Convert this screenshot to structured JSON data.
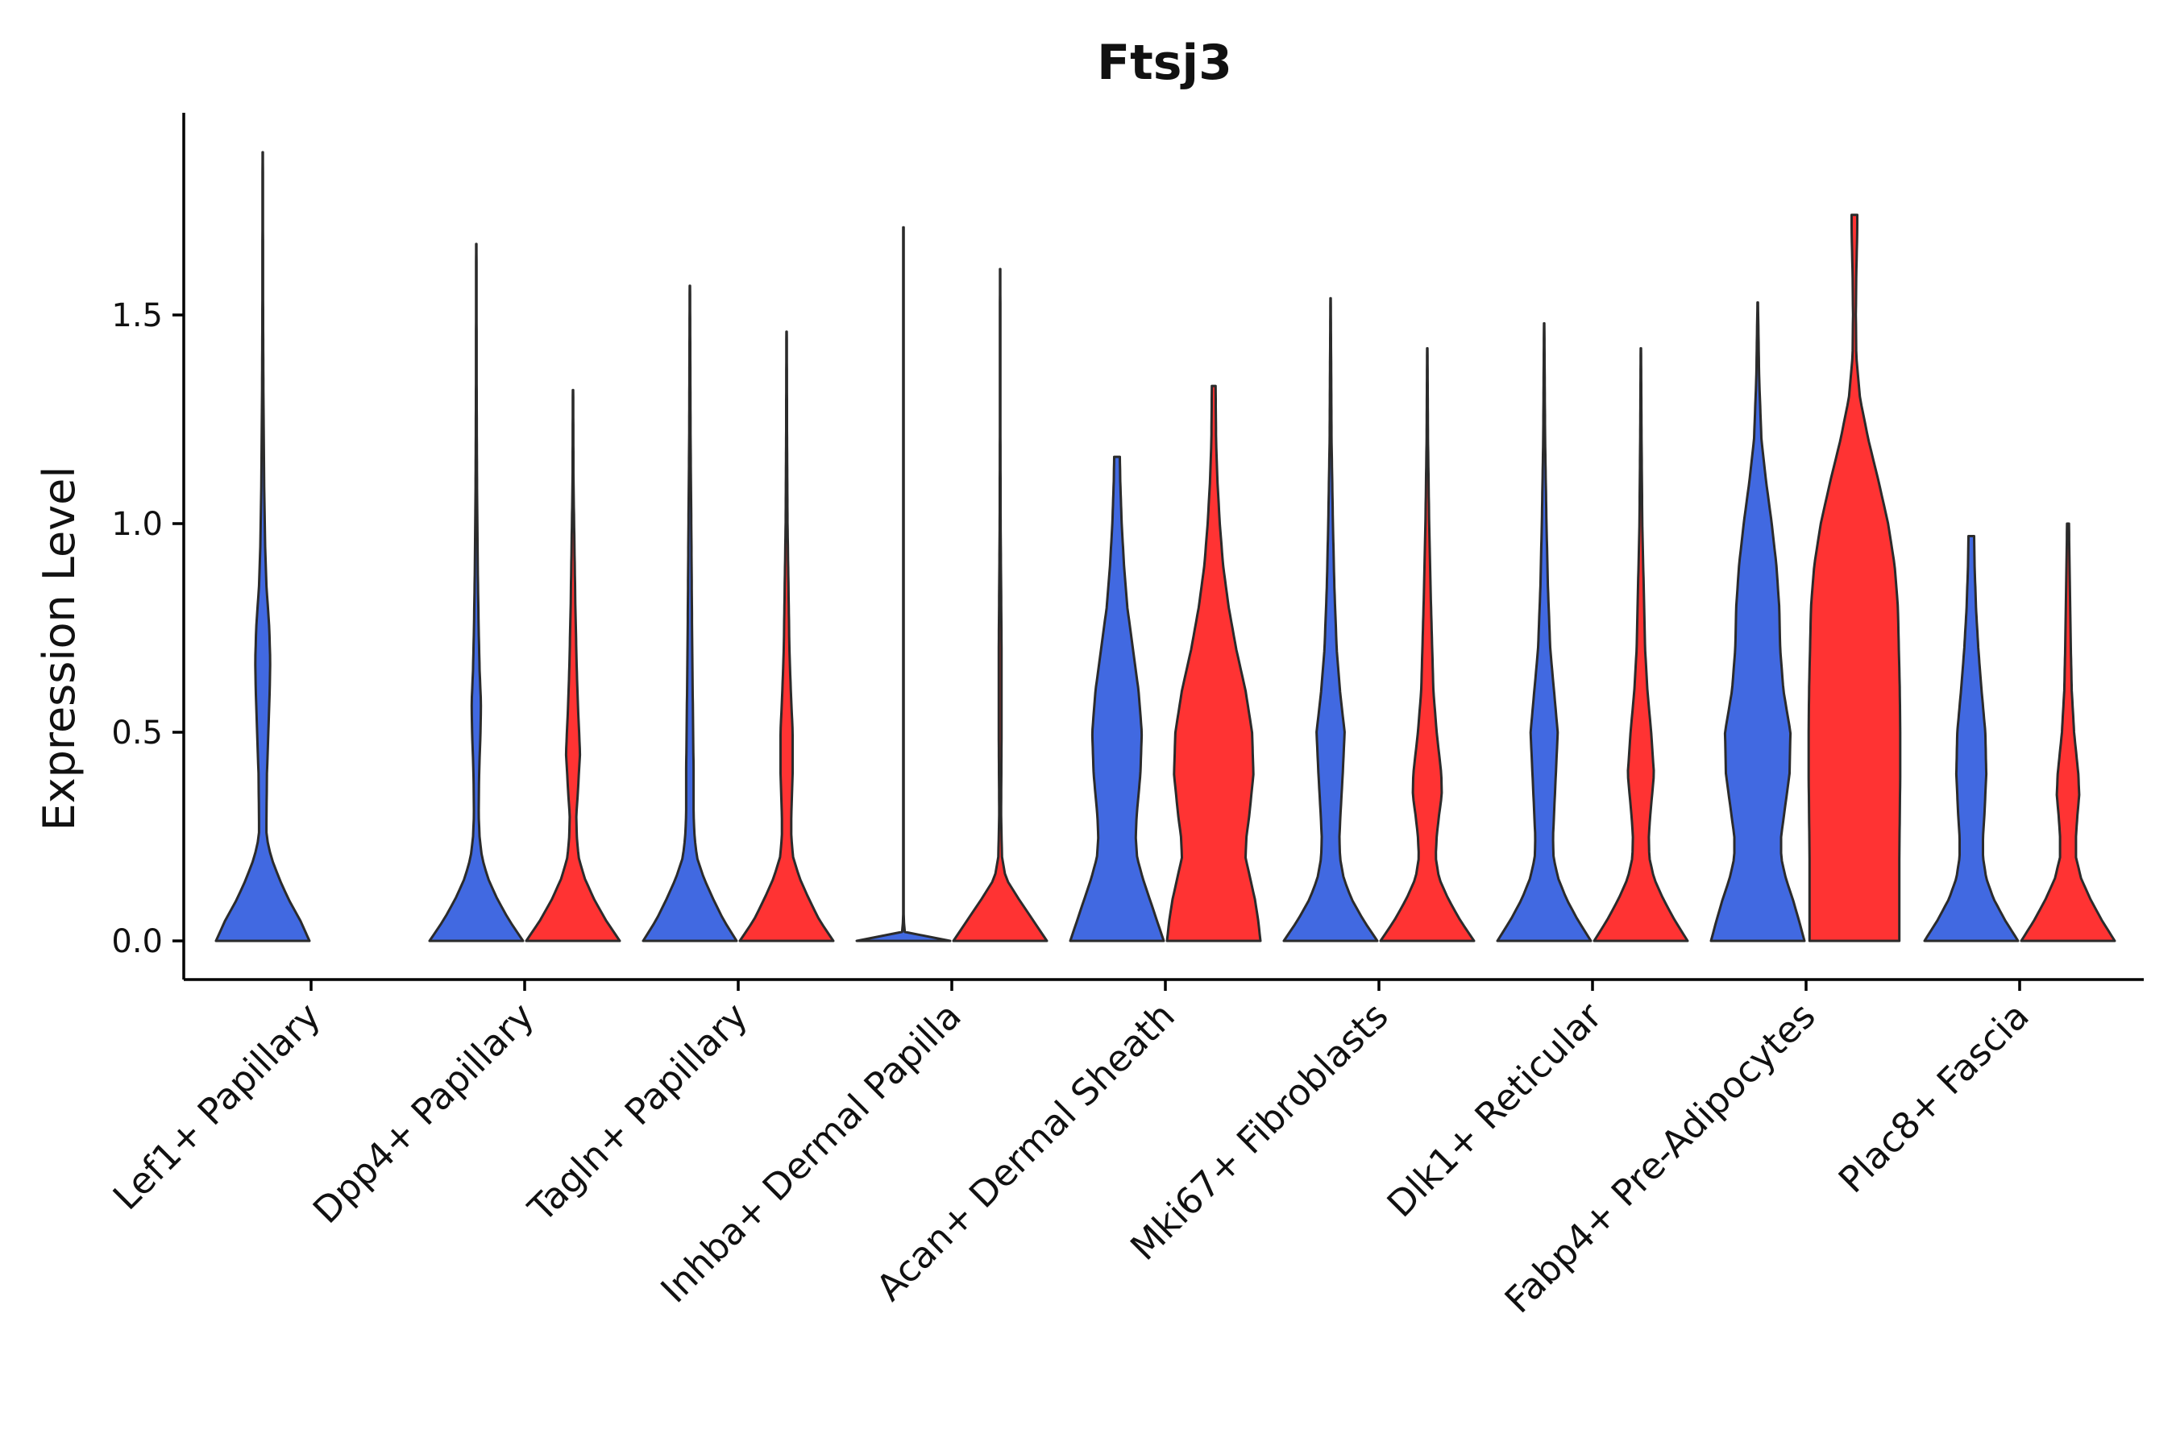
{
  "chart_data": {
    "type": "violin",
    "title": "Ftsj3",
    "xlabel": "",
    "ylabel": "Expression Level",
    "ylim": [
      -0.1,
      2.0
    ],
    "yticks": [
      0.0,
      0.5,
      1.0,
      1.5
    ],
    "ytick_labels": [
      "0.0",
      "0.5",
      "1.0",
      "1.5"
    ],
    "categories": [
      "Lef1+ Papillary",
      "Dpp4+ Papillary",
      "Tagln+ Papillary",
      "Inhba+ Dermal Papilla",
      "Acan+ Dermal Sheath",
      "Mki67+ Fibroblasts",
      "Dlk1+ Reticular",
      "Fabp4+ Pre-Adipocytes",
      "Plac8+ Fascia"
    ],
    "series_colors": {
      "blue": "#4169e1",
      "red": "#ff3333"
    },
    "violins": [
      {
        "category": "Lef1+ Papillary",
        "group": "blue",
        "max": 1.89,
        "profile": [
          [
            0,
            1.0
          ],
          [
            0.05,
            0.8
          ],
          [
            0.1,
            0.55
          ],
          [
            0.15,
            0.35
          ],
          [
            0.2,
            0.18
          ],
          [
            0.25,
            0.08
          ],
          [
            0.3,
            0.08
          ],
          [
            0.4,
            0.09
          ],
          [
            0.5,
            0.12
          ],
          [
            0.6,
            0.15
          ],
          [
            0.67,
            0.16
          ],
          [
            0.75,
            0.14
          ],
          [
            0.85,
            0.08
          ],
          [
            0.95,
            0.05
          ],
          [
            1.1,
            0.03
          ],
          [
            1.3,
            0.015
          ],
          [
            1.5,
            0.008
          ],
          [
            1.89,
            0.004
          ]
        ]
      },
      {
        "category": "Dpp4+ Papillary",
        "group": "blue",
        "max": 1.67,
        "profile": [
          [
            0,
            1.0
          ],
          [
            0.05,
            0.7
          ],
          [
            0.1,
            0.45
          ],
          [
            0.15,
            0.25
          ],
          [
            0.2,
            0.12
          ],
          [
            0.25,
            0.07
          ],
          [
            0.3,
            0.05
          ],
          [
            0.4,
            0.06
          ],
          [
            0.5,
            0.09
          ],
          [
            0.57,
            0.1
          ],
          [
            0.65,
            0.07
          ],
          [
            0.75,
            0.05
          ],
          [
            0.9,
            0.03
          ],
          [
            1.1,
            0.015
          ],
          [
            1.3,
            0.008
          ],
          [
            1.67,
            0.004
          ]
        ]
      },
      {
        "category": "Dpp4+ Papillary",
        "group": "red",
        "max": 1.32,
        "profile": [
          [
            0,
            1.0
          ],
          [
            0.05,
            0.7
          ],
          [
            0.1,
            0.45
          ],
          [
            0.15,
            0.25
          ],
          [
            0.2,
            0.12
          ],
          [
            0.25,
            0.08
          ],
          [
            0.3,
            0.07
          ],
          [
            0.35,
            0.1
          ],
          [
            0.45,
            0.15
          ],
          [
            0.55,
            0.11
          ],
          [
            0.65,
            0.08
          ],
          [
            0.8,
            0.05
          ],
          [
            0.95,
            0.03
          ],
          [
            1.1,
            0.01
          ],
          [
            1.32,
            0.004
          ]
        ]
      },
      {
        "category": "Tagln+ Papillary",
        "group": "blue",
        "max": 1.57,
        "profile": [
          [
            0,
            1.0
          ],
          [
            0.05,
            0.72
          ],
          [
            0.1,
            0.5
          ],
          [
            0.15,
            0.3
          ],
          [
            0.2,
            0.15
          ],
          [
            0.25,
            0.1
          ],
          [
            0.3,
            0.08
          ],
          [
            0.4,
            0.08
          ],
          [
            0.5,
            0.07
          ],
          [
            0.6,
            0.06
          ],
          [
            0.7,
            0.05
          ],
          [
            0.85,
            0.04
          ],
          [
            1.0,
            0.03
          ],
          [
            1.2,
            0.015
          ],
          [
            1.57,
            0.004
          ]
        ]
      },
      {
        "category": "Tagln+ Papillary",
        "group": "red",
        "max": 1.46,
        "profile": [
          [
            0,
            1.0
          ],
          [
            0.05,
            0.7
          ],
          [
            0.1,
            0.48
          ],
          [
            0.15,
            0.28
          ],
          [
            0.2,
            0.14
          ],
          [
            0.25,
            0.1
          ],
          [
            0.3,
            0.1
          ],
          [
            0.4,
            0.13
          ],
          [
            0.5,
            0.13
          ],
          [
            0.6,
            0.09
          ],
          [
            0.7,
            0.06
          ],
          [
            0.85,
            0.04
          ],
          [
            1.0,
            0.02
          ],
          [
            1.2,
            0.01
          ],
          [
            1.46,
            0.004
          ]
        ]
      },
      {
        "category": "Inhba+ Dermal Papilla",
        "group": "blue",
        "max": 1.71,
        "profile": [
          [
            0,
            1.0
          ],
          [
            0.01,
            0.25
          ],
          [
            0.02,
            0.03
          ],
          [
            0.05,
            0.006
          ],
          [
            1.71,
            0.006
          ]
        ]
      },
      {
        "category": "Inhba+ Dermal Papilla",
        "group": "red",
        "max": 1.61,
        "profile": [
          [
            0,
            1.0
          ],
          [
            0.05,
            0.7
          ],
          [
            0.1,
            0.4
          ],
          [
            0.15,
            0.12
          ],
          [
            0.2,
            0.04
          ],
          [
            0.3,
            0.02
          ],
          [
            0.5,
            0.03
          ],
          [
            0.7,
            0.03
          ],
          [
            0.85,
            0.02
          ],
          [
            1.0,
            0.01
          ],
          [
            1.2,
            0.006
          ],
          [
            1.61,
            0.004
          ]
        ]
      },
      {
        "category": "Acan+ Dermal Sheath",
        "group": "blue",
        "max": 1.16,
        "profile": [
          [
            0,
            1.0
          ],
          [
            0.05,
            0.85
          ],
          [
            0.1,
            0.7
          ],
          [
            0.15,
            0.55
          ],
          [
            0.2,
            0.43
          ],
          [
            0.25,
            0.4
          ],
          [
            0.3,
            0.42
          ],
          [
            0.4,
            0.5
          ],
          [
            0.5,
            0.53
          ],
          [
            0.6,
            0.46
          ],
          [
            0.7,
            0.34
          ],
          [
            0.8,
            0.22
          ],
          [
            0.9,
            0.15
          ],
          [
            1.0,
            0.1
          ],
          [
            1.1,
            0.07
          ],
          [
            1.16,
            0.06
          ]
        ]
      },
      {
        "category": "Acan+ Dermal Sheath",
        "group": "red",
        "max": 1.33,
        "profile": [
          [
            0,
            1.0
          ],
          [
            0.05,
            0.95
          ],
          [
            0.1,
            0.88
          ],
          [
            0.15,
            0.78
          ],
          [
            0.2,
            0.68
          ],
          [
            0.25,
            0.7
          ],
          [
            0.3,
            0.76
          ],
          [
            0.4,
            0.85
          ],
          [
            0.5,
            0.82
          ],
          [
            0.6,
            0.68
          ],
          [
            0.7,
            0.48
          ],
          [
            0.8,
            0.32
          ],
          [
            0.9,
            0.2
          ],
          [
            1.0,
            0.13
          ],
          [
            1.1,
            0.08
          ],
          [
            1.2,
            0.05
          ],
          [
            1.33,
            0.04
          ]
        ]
      },
      {
        "category": "Mki67+ Fibroblasts",
        "group": "blue",
        "max": 1.54,
        "profile": [
          [
            0,
            1.0
          ],
          [
            0.05,
            0.7
          ],
          [
            0.1,
            0.45
          ],
          [
            0.15,
            0.28
          ],
          [
            0.2,
            0.2
          ],
          [
            0.25,
            0.19
          ],
          [
            0.3,
            0.21
          ],
          [
            0.4,
            0.26
          ],
          [
            0.5,
            0.3
          ],
          [
            0.6,
            0.2
          ],
          [
            0.7,
            0.13
          ],
          [
            0.85,
            0.08
          ],
          [
            1.0,
            0.05
          ],
          [
            1.2,
            0.02
          ],
          [
            1.54,
            0.004
          ]
        ]
      },
      {
        "category": "Mki67+ Fibroblasts",
        "group": "red",
        "max": 1.42,
        "profile": [
          [
            0,
            1.0
          ],
          [
            0.05,
            0.7
          ],
          [
            0.1,
            0.45
          ],
          [
            0.15,
            0.25
          ],
          [
            0.2,
            0.18
          ],
          [
            0.25,
            0.2
          ],
          [
            0.3,
            0.25
          ],
          [
            0.35,
            0.31
          ],
          [
            0.4,
            0.3
          ],
          [
            0.5,
            0.2
          ],
          [
            0.6,
            0.13
          ],
          [
            0.8,
            0.08
          ],
          [
            1.0,
            0.04
          ],
          [
            1.2,
            0.015
          ],
          [
            1.42,
            0.004
          ]
        ]
      },
      {
        "category": "Dlk1+ Reticular",
        "group": "blue",
        "max": 1.48,
        "profile": [
          [
            0,
            1.0
          ],
          [
            0.05,
            0.72
          ],
          [
            0.1,
            0.48
          ],
          [
            0.15,
            0.3
          ],
          [
            0.2,
            0.2
          ],
          [
            0.25,
            0.19
          ],
          [
            0.3,
            0.21
          ],
          [
            0.4,
            0.25
          ],
          [
            0.5,
            0.29
          ],
          [
            0.6,
            0.21
          ],
          [
            0.7,
            0.13
          ],
          [
            0.85,
            0.08
          ],
          [
            1.0,
            0.05
          ],
          [
            1.2,
            0.02
          ],
          [
            1.48,
            0.004
          ]
        ]
      },
      {
        "category": "Dlk1+ Reticular",
        "group": "red",
        "max": 1.42,
        "profile": [
          [
            0,
            1.0
          ],
          [
            0.05,
            0.72
          ],
          [
            0.1,
            0.48
          ],
          [
            0.15,
            0.28
          ],
          [
            0.2,
            0.18
          ],
          [
            0.25,
            0.17
          ],
          [
            0.3,
            0.2
          ],
          [
            0.4,
            0.28
          ],
          [
            0.5,
            0.22
          ],
          [
            0.6,
            0.14
          ],
          [
            0.7,
            0.09
          ],
          [
            0.85,
            0.06
          ],
          [
            1.0,
            0.03
          ],
          [
            1.2,
            0.015
          ],
          [
            1.42,
            0.004
          ]
        ]
      },
      {
        "category": "Fabp4+ Pre-Adipocytes",
        "group": "blue",
        "max": 1.53,
        "profile": [
          [
            0,
            1.0
          ],
          [
            0.05,
            0.88
          ],
          [
            0.1,
            0.75
          ],
          [
            0.15,
            0.6
          ],
          [
            0.2,
            0.5
          ],
          [
            0.25,
            0.5
          ],
          [
            0.3,
            0.56
          ],
          [
            0.4,
            0.68
          ],
          [
            0.5,
            0.7
          ],
          [
            0.6,
            0.55
          ],
          [
            0.7,
            0.48
          ],
          [
            0.8,
            0.46
          ],
          [
            0.9,
            0.4
          ],
          [
            1.0,
            0.3
          ],
          [
            1.1,
            0.18
          ],
          [
            1.2,
            0.08
          ],
          [
            1.35,
            0.03
          ],
          [
            1.53,
            0.005
          ]
        ]
      },
      {
        "category": "Fabp4+ Pre-Adipocytes",
        "group": "red",
        "max": 1.74,
        "profile": [
          [
            0,
            0.96
          ],
          [
            0.1,
            0.96
          ],
          [
            0.2,
            0.96
          ],
          [
            0.3,
            0.97
          ],
          [
            0.4,
            0.98
          ],
          [
            0.5,
            0.98
          ],
          [
            0.6,
            0.97
          ],
          [
            0.7,
            0.95
          ],
          [
            0.8,
            0.93
          ],
          [
            0.9,
            0.86
          ],
          [
            1.0,
            0.72
          ],
          [
            1.1,
            0.52
          ],
          [
            1.2,
            0.3
          ],
          [
            1.3,
            0.12
          ],
          [
            1.4,
            0.04
          ],
          [
            1.5,
            0.03
          ],
          [
            1.6,
            0.04
          ],
          [
            1.7,
            0.06
          ],
          [
            1.74,
            0.06
          ]
        ]
      },
      {
        "category": "Plac8+ Fascia",
        "group": "blue",
        "max": 0.97,
        "profile": [
          [
            0,
            1.0
          ],
          [
            0.05,
            0.72
          ],
          [
            0.1,
            0.48
          ],
          [
            0.15,
            0.32
          ],
          [
            0.2,
            0.25
          ],
          [
            0.25,
            0.25
          ],
          [
            0.3,
            0.28
          ],
          [
            0.4,
            0.32
          ],
          [
            0.5,
            0.3
          ],
          [
            0.6,
            0.22
          ],
          [
            0.7,
            0.15
          ],
          [
            0.8,
            0.1
          ],
          [
            0.9,
            0.07
          ],
          [
            0.97,
            0.06
          ]
        ]
      },
      {
        "category": "Plac8+ Fascia",
        "group": "red",
        "max": 1.0,
        "profile": [
          [
            0,
            1.0
          ],
          [
            0.05,
            0.72
          ],
          [
            0.1,
            0.48
          ],
          [
            0.15,
            0.28
          ],
          [
            0.2,
            0.17
          ],
          [
            0.25,
            0.17
          ],
          [
            0.3,
            0.2
          ],
          [
            0.35,
            0.24
          ],
          [
            0.4,
            0.22
          ],
          [
            0.5,
            0.13
          ],
          [
            0.6,
            0.08
          ],
          [
            0.7,
            0.06
          ],
          [
            0.85,
            0.04
          ],
          [
            1.0,
            0.02
          ]
        ]
      }
    ]
  }
}
